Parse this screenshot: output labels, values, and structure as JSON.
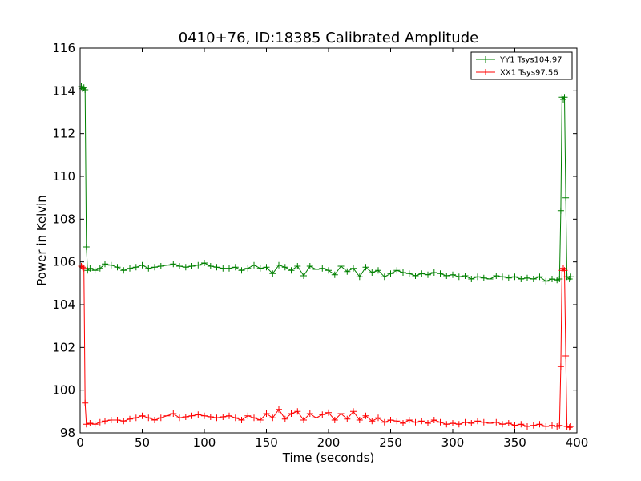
{
  "chart_data": {
    "type": "line",
    "title": "0410+76, ID:18385 Calibrated Amplitude",
    "xlabel": "Time (seconds)",
    "ylabel": "Power in Kelvin",
    "xlim": [
      0,
      400
    ],
    "ylim": [
      98,
      116
    ],
    "xticks": [
      "0",
      "50",
      "100",
      "150",
      "200",
      "250",
      "300",
      "350",
      "400"
    ],
    "yticks": [
      "98",
      "100",
      "102",
      "104",
      "106",
      "108",
      "110",
      "112",
      "114",
      "116"
    ],
    "grid": false,
    "legend_position": "top-right",
    "marker": "+",
    "series": [
      {
        "name": "YY1 Tsys104.97",
        "color": "#008000",
        "points": [
          [
            1,
            114.2
          ],
          [
            2,
            114.1
          ],
          [
            3,
            114.15
          ],
          [
            4,
            114.05
          ],
          [
            5,
            106.7
          ],
          [
            6,
            105.6
          ],
          [
            8,
            105.7
          ],
          [
            12,
            105.6
          ],
          [
            16,
            105.7
          ],
          [
            20,
            105.9
          ],
          [
            25,
            105.85
          ],
          [
            30,
            105.75
          ],
          [
            35,
            105.6
          ],
          [
            40,
            105.7
          ],
          [
            45,
            105.75
          ],
          [
            50,
            105.85
          ],
          [
            55,
            105.7
          ],
          [
            60,
            105.75
          ],
          [
            65,
            105.8
          ],
          [
            70,
            105.85
          ],
          [
            75,
            105.9
          ],
          [
            80,
            105.8
          ],
          [
            85,
            105.75
          ],
          [
            90,
            105.8
          ],
          [
            95,
            105.85
          ],
          [
            100,
            105.95
          ],
          [
            105,
            105.8
          ],
          [
            110,
            105.75
          ],
          [
            115,
            105.7
          ],
          [
            120,
            105.7
          ],
          [
            125,
            105.75
          ],
          [
            130,
            105.6
          ],
          [
            135,
            105.7
          ],
          [
            140,
            105.85
          ],
          [
            145,
            105.7
          ],
          [
            150,
            105.75
          ],
          [
            155,
            105.45
          ],
          [
            160,
            105.85
          ],
          [
            165,
            105.75
          ],
          [
            170,
            105.6
          ],
          [
            175,
            105.8
          ],
          [
            180,
            105.35
          ],
          [
            185,
            105.8
          ],
          [
            190,
            105.65
          ],
          [
            195,
            105.7
          ],
          [
            200,
            105.6
          ],
          [
            205,
            105.4
          ],
          [
            210,
            105.8
          ],
          [
            215,
            105.55
          ],
          [
            220,
            105.7
          ],
          [
            225,
            105.3
          ],
          [
            230,
            105.75
          ],
          [
            235,
            105.5
          ],
          [
            240,
            105.6
          ],
          [
            245,
            105.3
          ],
          [
            250,
            105.45
          ],
          [
            255,
            105.6
          ],
          [
            260,
            105.5
          ],
          [
            265,
            105.45
          ],
          [
            270,
            105.35
          ],
          [
            275,
            105.45
          ],
          [
            280,
            105.4
          ],
          [
            285,
            105.5
          ],
          [
            290,
            105.45
          ],
          [
            295,
            105.35
          ],
          [
            300,
            105.4
          ],
          [
            305,
            105.3
          ],
          [
            310,
            105.35
          ],
          [
            315,
            105.2
          ],
          [
            320,
            105.3
          ],
          [
            325,
            105.25
          ],
          [
            330,
            105.2
          ],
          [
            335,
            105.35
          ],
          [
            340,
            105.3
          ],
          [
            345,
            105.25
          ],
          [
            350,
            105.3
          ],
          [
            355,
            105.2
          ],
          [
            360,
            105.25
          ],
          [
            365,
            105.2
          ],
          [
            370,
            105.3
          ],
          [
            375,
            105.1
          ],
          [
            380,
            105.2
          ],
          [
            384,
            105.15
          ],
          [
            386,
            105.2
          ],
          [
            387,
            108.4
          ],
          [
            388,
            113.7
          ],
          [
            389,
            113.6
          ],
          [
            390,
            113.7
          ],
          [
            391,
            109.0
          ],
          [
            392,
            105.3
          ],
          [
            394,
            105.2
          ],
          [
            395,
            105.3
          ]
        ]
      },
      {
        "name": "XX1 Tsys97.56",
        "color": "#ff0000",
        "points": [
          [
            1,
            105.8
          ],
          [
            2,
            105.75
          ],
          [
            3,
            105.7
          ],
          [
            4,
            99.4
          ],
          [
            5,
            98.4
          ],
          [
            8,
            98.45
          ],
          [
            12,
            98.4
          ],
          [
            16,
            98.5
          ],
          [
            20,
            98.55
          ],
          [
            25,
            98.6
          ],
          [
            30,
            98.6
          ],
          [
            35,
            98.55
          ],
          [
            40,
            98.65
          ],
          [
            45,
            98.7
          ],
          [
            50,
            98.8
          ],
          [
            55,
            98.7
          ],
          [
            60,
            98.6
          ],
          [
            65,
            98.7
          ],
          [
            70,
            98.8
          ],
          [
            75,
            98.9
          ],
          [
            80,
            98.7
          ],
          [
            85,
            98.75
          ],
          [
            90,
            98.8
          ],
          [
            95,
            98.85
          ],
          [
            100,
            98.8
          ],
          [
            105,
            98.75
          ],
          [
            110,
            98.7
          ],
          [
            115,
            98.75
          ],
          [
            120,
            98.8
          ],
          [
            125,
            98.7
          ],
          [
            130,
            98.6
          ],
          [
            135,
            98.8
          ],
          [
            140,
            98.7
          ],
          [
            145,
            98.6
          ],
          [
            150,
            98.9
          ],
          [
            155,
            98.7
          ],
          [
            160,
            99.1
          ],
          [
            165,
            98.65
          ],
          [
            170,
            98.9
          ],
          [
            175,
            99.0
          ],
          [
            180,
            98.6
          ],
          [
            185,
            98.9
          ],
          [
            190,
            98.7
          ],
          [
            195,
            98.85
          ],
          [
            200,
            98.95
          ],
          [
            205,
            98.6
          ],
          [
            210,
            98.9
          ],
          [
            215,
            98.65
          ],
          [
            220,
            99.0
          ],
          [
            225,
            98.6
          ],
          [
            230,
            98.8
          ],
          [
            235,
            98.55
          ],
          [
            240,
            98.7
          ],
          [
            245,
            98.5
          ],
          [
            250,
            98.6
          ],
          [
            255,
            98.55
          ],
          [
            260,
            98.45
          ],
          [
            265,
            98.6
          ],
          [
            270,
            98.5
          ],
          [
            275,
            98.55
          ],
          [
            280,
            98.45
          ],
          [
            285,
            98.6
          ],
          [
            290,
            98.5
          ],
          [
            295,
            98.4
          ],
          [
            300,
            98.45
          ],
          [
            305,
            98.4
          ],
          [
            310,
            98.5
          ],
          [
            315,
            98.45
          ],
          [
            320,
            98.55
          ],
          [
            325,
            98.5
          ],
          [
            330,
            98.45
          ],
          [
            335,
            98.5
          ],
          [
            340,
            98.4
          ],
          [
            345,
            98.45
          ],
          [
            350,
            98.35
          ],
          [
            355,
            98.4
          ],
          [
            360,
            98.3
          ],
          [
            365,
            98.35
          ],
          [
            370,
            98.4
          ],
          [
            375,
            98.3
          ],
          [
            380,
            98.35
          ],
          [
            384,
            98.3
          ],
          [
            386,
            98.35
          ],
          [
            387,
            101.1
          ],
          [
            388,
            105.6
          ],
          [
            389,
            105.7
          ],
          [
            390,
            105.6
          ],
          [
            391,
            101.6
          ],
          [
            392,
            98.3
          ],
          [
            394,
            98.25
          ],
          [
            395,
            98.3
          ]
        ]
      }
    ]
  }
}
